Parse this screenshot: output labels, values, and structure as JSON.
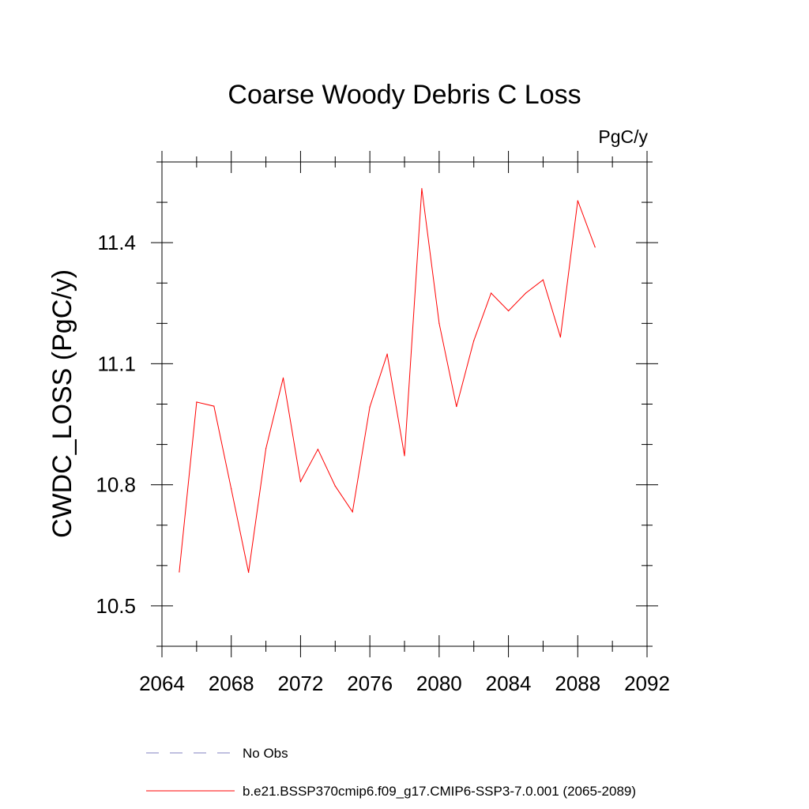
{
  "chart_data": {
    "type": "line",
    "title": "Coarse Woody Debris C Loss",
    "units_label": "PgC/y",
    "ylabel": "CWDC_LOSS  (PgC/y)",
    "xlabel": "",
    "xlim": [
      2064,
      2092
    ],
    "ylim": [
      10.4,
      11.6
    ],
    "xticks": [
      2064,
      2068,
      2072,
      2076,
      2080,
      2084,
      2088,
      2092
    ],
    "yticks": [
      10.5,
      10.8,
      11.1,
      11.4
    ],
    "xtick_labels": [
      "2064",
      "2068",
      "2072",
      "2076",
      "2080",
      "2084",
      "2088",
      "2092"
    ],
    "ytick_labels": [
      "10.5",
      "10.8",
      "11.1",
      "11.4"
    ],
    "x_minor_step": 2,
    "y_minor_step": 0.1,
    "grid": false,
    "series": [
      {
        "name": "b.e21.BSSP370cmip6.f09_g17.CMIP6-SSP3-7.0.001 (2065-2089)",
        "color": "#ff0000",
        "x": [
          2065,
          2066,
          2067,
          2068,
          2069,
          2070,
          2071,
          2072,
          2073,
          2074,
          2075,
          2076,
          2077,
          2078,
          2079,
          2080,
          2081,
          2082,
          2083,
          2084,
          2085,
          2086,
          2087,
          2088,
          2089
        ],
        "y": [
          10.584,
          11.005,
          10.995,
          10.79,
          10.583,
          10.89,
          11.065,
          10.808,
          10.888,
          10.797,
          10.733,
          10.993,
          11.124,
          10.872,
          11.534,
          11.2,
          10.994,
          11.157,
          11.275,
          11.231,
          11.275,
          11.308,
          11.166,
          11.504,
          11.389
        ]
      }
    ],
    "legend": {
      "placement": "bottom",
      "entries": [
        {
          "label": "No Obs",
          "color": "#8080c0",
          "style": "dashed"
        },
        {
          "label": "b.e21.BSSP370cmip6.f09_g17.CMIP6-SSP3-7.0.001 (2065-2089)",
          "color": "#ff0000",
          "style": "solid"
        }
      ]
    }
  }
}
